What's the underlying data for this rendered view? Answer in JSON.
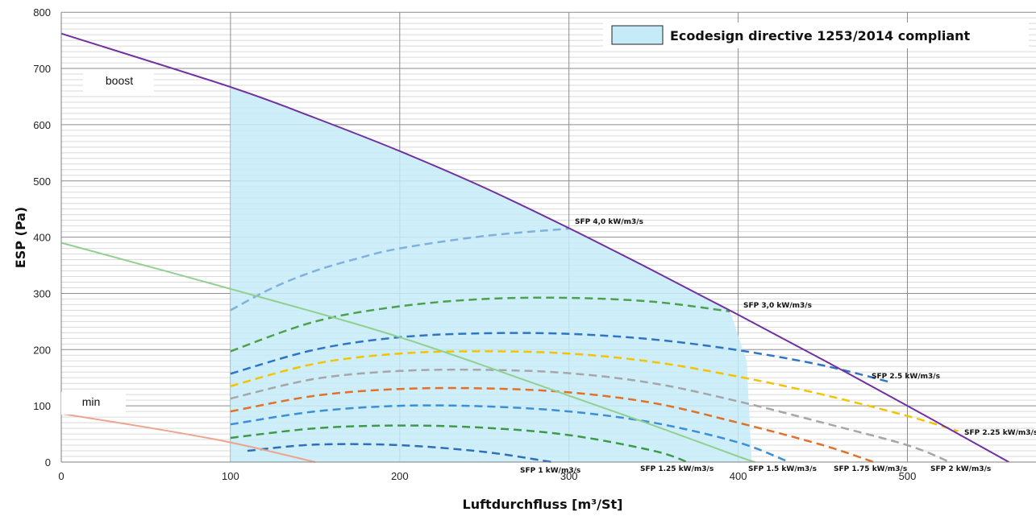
{
  "chart_data": {
    "type": "line",
    "xlabel": "Luftdurchfluss [m³/St]",
    "ylabel": "ESP (Pa)",
    "xlim": [
      0,
      580
    ],
    "ylim": [
      0,
      800
    ],
    "x_ticks": [
      0,
      100,
      200,
      300,
      400,
      500
    ],
    "y_ticks": [
      0,
      100,
      200,
      300,
      400,
      500,
      600,
      700,
      800
    ],
    "grid": true,
    "legend": {
      "label": "Ecodesign directive 1253/2014 compliant",
      "color": "#c6ebf8",
      "placement": "top-right"
    },
    "compliant_region": [
      [
        100,
        0
      ],
      [
        100,
        667
      ],
      [
        150,
        612
      ],
      [
        200,
        553
      ],
      [
        250,
        488
      ],
      [
        300,
        416
      ],
      [
        350,
        340
      ],
      [
        395,
        270
      ],
      [
        405,
        180
      ],
      [
        408,
        0
      ]
    ],
    "fan_curves": [
      {
        "label": "boost",
        "color": "#7030a0",
        "points": [
          [
            0,
            762
          ],
          [
            100,
            667
          ],
          [
            150,
            612
          ],
          [
            200,
            553
          ],
          [
            250,
            488
          ],
          [
            300,
            416
          ],
          [
            350,
            340
          ],
          [
            400,
            262
          ],
          [
            450,
            182
          ],
          [
            500,
            100
          ],
          [
            560,
            0
          ]
        ]
      },
      {
        "label": "",
        "color": "#92d090",
        "points": [
          [
            0,
            390
          ],
          [
            100,
            308
          ],
          [
            200,
            222
          ],
          [
            300,
            118
          ],
          [
            350,
            65
          ],
          [
            400,
            10
          ],
          [
            410,
            0
          ]
        ]
      },
      {
        "label": "min",
        "color": "#eba58c",
        "points": [
          [
            0,
            86
          ],
          [
            50,
            62
          ],
          [
            100,
            35
          ],
          [
            150,
            0
          ]
        ]
      }
    ],
    "sfp_curves": [
      {
        "label": "SFP 4,0 kW/m3/s",
        "color": "#7fb1dc",
        "points": [
          [
            100,
            270
          ],
          [
            125,
            310
          ],
          [
            150,
            340
          ],
          [
            175,
            362
          ],
          [
            200,
            380
          ],
          [
            250,
            402
          ],
          [
            300,
            415
          ]
        ]
      },
      {
        "label": "SFP 3,0 kW/m3/s",
        "color": "#4ea04e",
        "points": [
          [
            100,
            197
          ],
          [
            150,
            250
          ],
          [
            200,
            277
          ],
          [
            250,
            290
          ],
          [
            300,
            292
          ],
          [
            350,
            285
          ],
          [
            395,
            268
          ]
        ]
      },
      {
        "label": "SFP 2.5 kW/m3/s",
        "color": "#2e75c6",
        "points": [
          [
            100,
            157
          ],
          [
            150,
            200
          ],
          [
            200,
            222
          ],
          [
            250,
            229
          ],
          [
            300,
            228
          ],
          [
            350,
            218
          ],
          [
            400,
            199
          ],
          [
            450,
            172
          ],
          [
            490,
            142
          ]
        ]
      },
      {
        "label": "SFP 2.25 kW/m3/s",
        "color": "#f2c400",
        "points": [
          [
            100,
            135
          ],
          [
            150,
            175
          ],
          [
            200,
            193
          ],
          [
            250,
            197
          ],
          [
            300,
            193
          ],
          [
            350,
            178
          ],
          [
            400,
            152
          ],
          [
            450,
            120
          ],
          [
            500,
            82
          ],
          [
            530,
            55
          ]
        ]
      },
      {
        "label": "SFP 2 kW/m3/s",
        "color": "#a6a6a6",
        "points": [
          [
            100,
            113
          ],
          [
            150,
            148
          ],
          [
            200,
            162
          ],
          [
            250,
            164
          ],
          [
            300,
            158
          ],
          [
            350,
            140
          ],
          [
            400,
            108
          ],
          [
            450,
            70
          ],
          [
            500,
            30
          ],
          [
            525,
            0
          ]
        ]
      },
      {
        "label": "SFP 1.75 kW/m3/s",
        "color": "#e0702a",
        "points": [
          [
            100,
            90
          ],
          [
            150,
            118
          ],
          [
            200,
            130
          ],
          [
            250,
            131
          ],
          [
            300,
            124
          ],
          [
            350,
            105
          ],
          [
            400,
            70
          ],
          [
            450,
            30
          ],
          [
            480,
            0
          ]
        ]
      },
      {
        "label": "",
        "color": "#3b8fd6",
        "points": [
          [
            100,
            67
          ],
          [
            150,
            90
          ],
          [
            200,
            100
          ],
          [
            250,
            99
          ],
          [
            300,
            90
          ],
          [
            350,
            70
          ],
          [
            400,
            35
          ],
          [
            430,
            0
          ]
        ]
      },
      {
        "label": "SFP 1.25 kW/m3/s",
        "color": "#3e9a4a",
        "points": [
          [
            100,
            43
          ],
          [
            150,
            60
          ],
          [
            200,
            65
          ],
          [
            250,
            61
          ],
          [
            300,
            48
          ],
          [
            350,
            20
          ],
          [
            370,
            0
          ]
        ]
      },
      {
        "label": "SFP 1 kW/m3/s",
        "color": "#2e6fba",
        "points": [
          [
            110,
            20
          ],
          [
            150,
            31
          ],
          [
            200,
            30
          ],
          [
            250,
            18
          ],
          [
            290,
            0
          ]
        ]
      }
    ],
    "sfp_extra_label": "SFP 1.5 kW/m3/s"
  }
}
